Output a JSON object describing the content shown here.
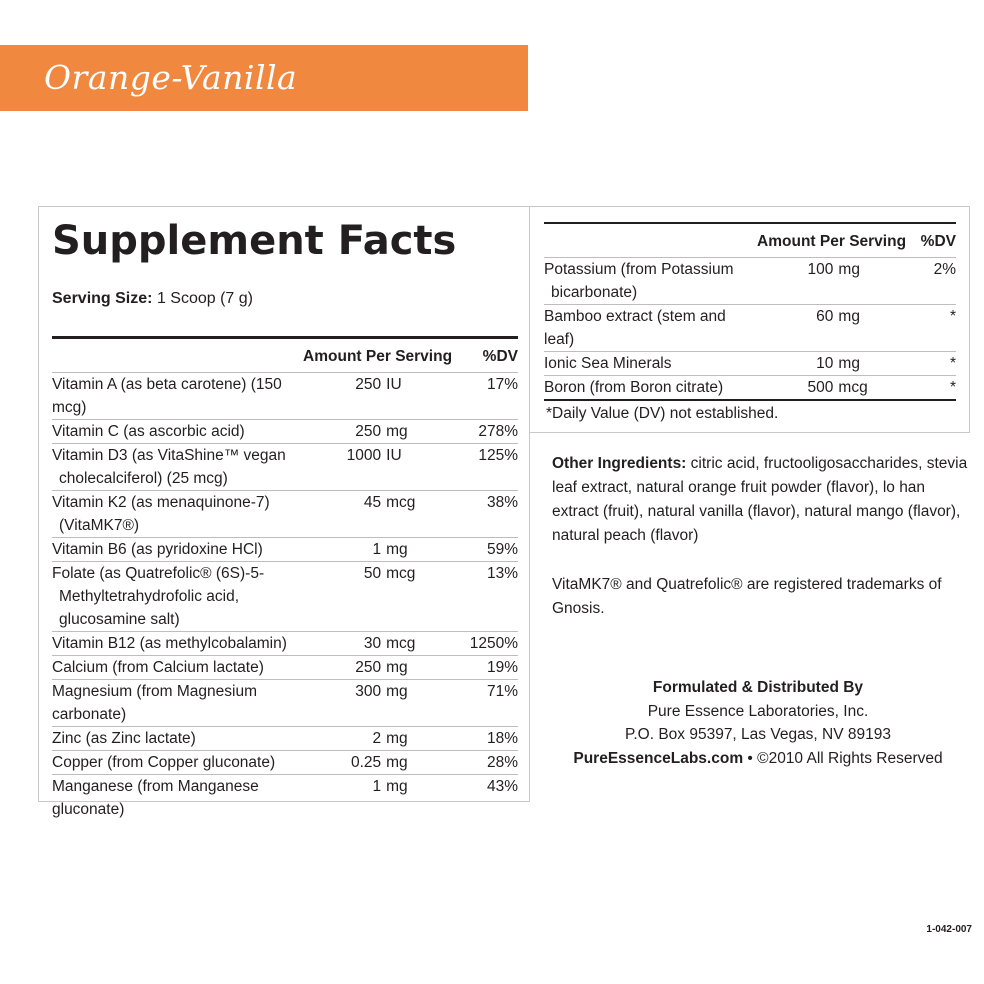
{
  "banner": {
    "flavor": "Orange-Vanilla",
    "color": "#f0883f"
  },
  "facts": {
    "title": "Supplement Facts",
    "serving_label": "Serving Size:",
    "serving_value": "1 Scoop (7 g)",
    "header_amount": "Amount Per Serving",
    "header_dv": "%DV",
    "left_rows": [
      {
        "name": [
          "Vitamin A (as beta carotene) (150 mcg)"
        ],
        "num": "250",
        "unit": "IU",
        "dv": "17%"
      },
      {
        "name": [
          "Vitamin C (as ascorbic acid)"
        ],
        "num": "250",
        "unit": "mg",
        "dv": "278%"
      },
      {
        "name": [
          "Vitamin D3 (as VitaShine™ vegan",
          "cholecalciferol) (25 mcg)"
        ],
        "num": "1000",
        "unit": "IU",
        "dv": "125%"
      },
      {
        "name": [
          "Vitamin K2 (as menaquinone-7)",
          "(VitaMK7®)"
        ],
        "num": "45",
        "unit": "mcg",
        "dv": "38%"
      },
      {
        "name": [
          "Vitamin B6 (as pyridoxine HCl)"
        ],
        "num": "1",
        "unit": "mg",
        "dv": "59%"
      },
      {
        "name": [
          "Folate (as Quatrefolic® (6S)-5-",
          "Methyltetrahydrofolic acid,",
          "glucosamine salt)"
        ],
        "num": "50",
        "unit": "mcg",
        "dv": "13%"
      },
      {
        "name": [
          "Vitamin B12 (as methylcobalamin)"
        ],
        "num": "30",
        "unit": "mcg",
        "dv": "1250%"
      },
      {
        "name": [
          "Calcium (from Calcium lactate)"
        ],
        "num": "250",
        "unit": "mg",
        "dv": "19%"
      },
      {
        "name": [
          "Magnesium (from Magnesium carbonate)"
        ],
        "num": "300",
        "unit": "mg",
        "dv": "71%"
      },
      {
        "name": [
          "Zinc (as Zinc lactate)"
        ],
        "num": "2",
        "unit": "mg",
        "dv": "18%"
      },
      {
        "name": [
          "Copper (from Copper gluconate)"
        ],
        "num": "0.25",
        "unit": "mg",
        "dv": "28%"
      },
      {
        "name": [
          "Manganese (from Manganese gluconate)"
        ],
        "num": "1",
        "unit": "mg",
        "dv": "43%"
      }
    ],
    "right_rows": [
      {
        "name": [
          "Potassium (from Potassium",
          "bicarbonate)"
        ],
        "num": "100",
        "unit": "mg",
        "dv": "2%"
      },
      {
        "name": [
          "Bamboo extract (stem and leaf)"
        ],
        "num": "60",
        "unit": "mg",
        "dv": "*"
      },
      {
        "name": [
          "Ionic Sea Minerals"
        ],
        "num": "10",
        "unit": "mg",
        "dv": "*"
      },
      {
        "name": [
          "Boron (from Boron citrate)"
        ],
        "num": "500",
        "unit": "mcg",
        "dv": "*"
      }
    ],
    "footnote": "*Daily Value (DV) not established."
  },
  "other": {
    "label": "Other Ingredients:",
    "text": " citric acid, fructooligosaccharides, stevia leaf extract, natural orange fruit powder (flavor), lo han extract (fruit), natural vanilla (flavor), natural mango (flavor), natural peach (flavor)"
  },
  "trademark": "VitaMK7® and Quatrefolic® are registered trademarks of Gnosis.",
  "formulated": {
    "heading": "Formulated & Distributed By",
    "company": "Pure Essence Laboratories, Inc.",
    "address": "P.O. Box 95397, Las Vegas, NV 89193",
    "website": "PureEssenceLabs.com",
    "rights": " • ©2010 All Rights Reserved"
  },
  "code": "1-042-007"
}
